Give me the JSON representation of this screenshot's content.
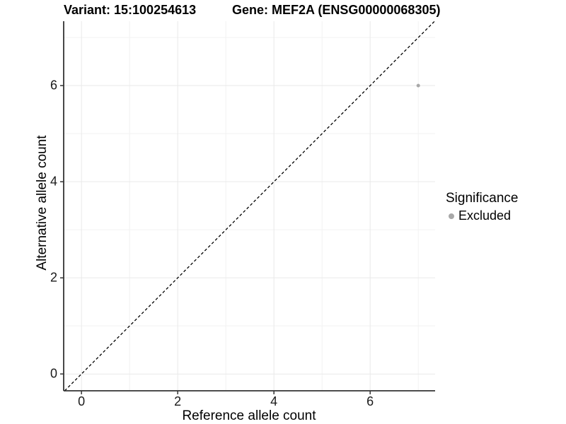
{
  "chart_data": {
    "type": "scatter",
    "title_left": "Variant: 15:100254613",
    "title_right": "Gene: MEF2A (ENSG00000068305)",
    "xlabel": "Reference allele count",
    "ylabel": "Alternative allele count",
    "xlim": [
      -0.37,
      7.35
    ],
    "ylim": [
      -0.35,
      7.34
    ],
    "x_ticks": [
      0,
      2,
      4,
      6
    ],
    "y_ticks": [
      0,
      2,
      4,
      6
    ],
    "x_tick_labels": [
      "0",
      "2",
      "4",
      "6"
    ],
    "y_tick_labels": [
      "0",
      "2",
      "4",
      "6"
    ],
    "minor_grid_x": [
      1,
      3,
      5,
      7
    ],
    "minor_grid_y": [
      1,
      3,
      5,
      7
    ],
    "grid": "on",
    "points": [
      {
        "x": 7,
        "y": 6,
        "series": "Excluded",
        "color": "#a8a8a8"
      }
    ],
    "identity_line": {
      "style": "dashed",
      "slope": 1,
      "intercept": 0,
      "color": "#000000"
    },
    "legend": {
      "title": "Significance",
      "position": "right",
      "items": [
        {
          "label": "Excluded",
          "color": "#a8a8a8"
        }
      ]
    },
    "colors": {
      "background": "#ffffff",
      "grid_major": "#e9e9e9",
      "grid_minor": "#f2f2f2",
      "axis_line": "#333333",
      "tick_mark": "#333333"
    }
  }
}
